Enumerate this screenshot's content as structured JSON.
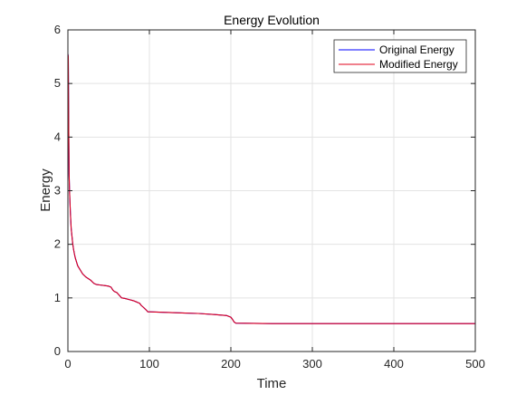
{
  "chart_data": {
    "type": "line",
    "title": "Energy Evolution",
    "xlabel": "Time",
    "ylabel": "Energy",
    "xlim": [
      0,
      500
    ],
    "ylim": [
      0,
      6
    ],
    "xticks": [
      "0",
      "100",
      "200",
      "300",
      "400",
      "500"
    ],
    "yticks": [
      "0",
      "1",
      "2",
      "3",
      "4",
      "5",
      "6"
    ],
    "grid": true,
    "legend_position": "top-right",
    "series": [
      {
        "name": "Original Energy",
        "color": "#0000ff",
        "x": [
          0,
          0.5,
          1,
          1.5,
          2,
          3,
          4,
          5,
          6,
          7,
          8,
          9,
          10,
          12,
          14,
          16,
          18,
          20,
          22,
          24,
          26,
          28,
          30,
          32,
          35,
          40,
          45,
          50,
          53,
          55,
          57,
          60,
          63,
          66,
          70,
          75,
          80,
          85,
          88,
          90,
          93,
          95,
          97,
          98,
          100,
          120,
          140,
          160,
          180,
          195,
          200,
          202,
          204,
          206,
          250,
          300,
          350,
          400,
          450,
          500
        ],
        "y": [
          5.55,
          5.5,
          4.2,
          3.3,
          3.0,
          2.6,
          2.3,
          2.15,
          2.0,
          1.9,
          1.82,
          1.75,
          1.7,
          1.6,
          1.55,
          1.5,
          1.45,
          1.42,
          1.39,
          1.37,
          1.35,
          1.33,
          1.3,
          1.27,
          1.25,
          1.24,
          1.23,
          1.22,
          1.2,
          1.15,
          1.12,
          1.1,
          1.05,
          1.0,
          0.99,
          0.97,
          0.95,
          0.92,
          0.9,
          0.86,
          0.82,
          0.79,
          0.76,
          0.74,
          0.74,
          0.73,
          0.72,
          0.71,
          0.69,
          0.67,
          0.64,
          0.6,
          0.55,
          0.53,
          0.52,
          0.52,
          0.52,
          0.52,
          0.52,
          0.52
        ]
      },
      {
        "name": "Modified Energy",
        "color": "#e0001b",
        "x": [
          0,
          0.5,
          1,
          1.5,
          2,
          3,
          4,
          5,
          6,
          7,
          8,
          9,
          10,
          12,
          14,
          16,
          18,
          20,
          22,
          24,
          26,
          28,
          30,
          32,
          35,
          40,
          45,
          50,
          53,
          55,
          57,
          60,
          63,
          66,
          70,
          75,
          80,
          85,
          88,
          90,
          93,
          95,
          97,
          98,
          100,
          120,
          140,
          160,
          180,
          195,
          200,
          202,
          204,
          206,
          250,
          300,
          350,
          400,
          450,
          500
        ],
        "y": [
          5.55,
          5.5,
          4.2,
          3.3,
          3.0,
          2.6,
          2.3,
          2.15,
          2.0,
          1.9,
          1.82,
          1.75,
          1.7,
          1.6,
          1.55,
          1.5,
          1.45,
          1.42,
          1.39,
          1.37,
          1.35,
          1.33,
          1.3,
          1.27,
          1.25,
          1.24,
          1.23,
          1.22,
          1.2,
          1.15,
          1.12,
          1.1,
          1.05,
          1.0,
          0.99,
          0.97,
          0.95,
          0.92,
          0.9,
          0.86,
          0.82,
          0.79,
          0.76,
          0.74,
          0.74,
          0.73,
          0.72,
          0.71,
          0.69,
          0.67,
          0.64,
          0.6,
          0.55,
          0.53,
          0.52,
          0.52,
          0.52,
          0.52,
          0.52,
          0.52
        ]
      }
    ]
  }
}
